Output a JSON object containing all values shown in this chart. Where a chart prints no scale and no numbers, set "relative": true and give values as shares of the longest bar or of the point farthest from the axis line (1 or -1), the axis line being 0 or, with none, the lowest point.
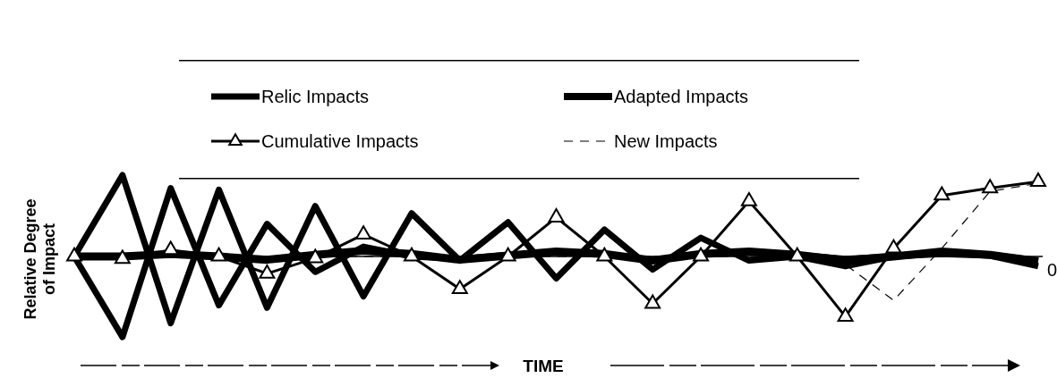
{
  "chart_data": {
    "type": "line",
    "relative": true,
    "xlabel": "TIME",
    "ylabel": "Relative Degree\nof Impact",
    "legend": "top",
    "categories": [
      null,
      null,
      null,
      null,
      null,
      null,
      null,
      null,
      null,
      null,
      null,
      null,
      null,
      null,
      null,
      null,
      null,
      null,
      null,
      null,
      null
    ],
    "ref_lines": [
      {
        "axis": "y",
        "value": 0,
        "label": "0",
        "color": "#000000"
      }
    ],
    "series": [
      {
        "name": "Relic Impacts",
        "color": "#000000",
        "values": [
          0,
          1,
          -0.82,
          0.82,
          -0.63,
          0.62,
          -0.49,
          0.53,
          -0.05,
          0.42,
          -0.27,
          0.33,
          -0.16,
          0.23,
          -0.05,
          0,
          -0.12,
          0,
          0.03,
          0.01,
          -0.12
        ]
      },
      {
        "color": "#000000",
        "values": [
          0,
          -0.99,
          0.84,
          -0.6,
          0.4,
          -0.19,
          0.12,
          0,
          -0.03,
          0.02,
          0.05,
          0.03,
          -0.05,
          0.03,
          0.06,
          0.02,
          -0.03,
          0,
          0.05,
          0.02,
          -0.05
        ]
      },
      {
        "name": "Adapted Impacts",
        "color": "#000000",
        "values": [
          0,
          0,
          0.03,
          0,
          -0.04,
          0.02,
          0.07,
          0.03,
          -0.04,
          0.01,
          0.06,
          0.03,
          -0.05,
          0.03,
          0.06,
          0.02,
          -0.05,
          0,
          0.06,
          0.02,
          -0.06
        ]
      },
      {
        "name": "Cumulative Impacts",
        "color": "#000000",
        "marker": "triangle",
        "values": [
          0,
          -0.03,
          0.08,
          0,
          -0.21,
          -0.02,
          0.27,
          0,
          -0.4,
          0,
          0.48,
          0,
          -0.58,
          0,
          0.68,
          0,
          -0.74,
          0.1,
          0.75,
          0.84,
          0.92
        ]
      },
      {
        "name": "New Impacts",
        "color": "#000000",
        "line_style": "dashed",
        "values": [
          0,
          0,
          0,
          0,
          0,
          0,
          0,
          0,
          0,
          0,
          0,
          0,
          0,
          0,
          0,
          0,
          -0.1,
          -0.54,
          0.1,
          0.8,
          0.9
        ]
      }
    ]
  }
}
